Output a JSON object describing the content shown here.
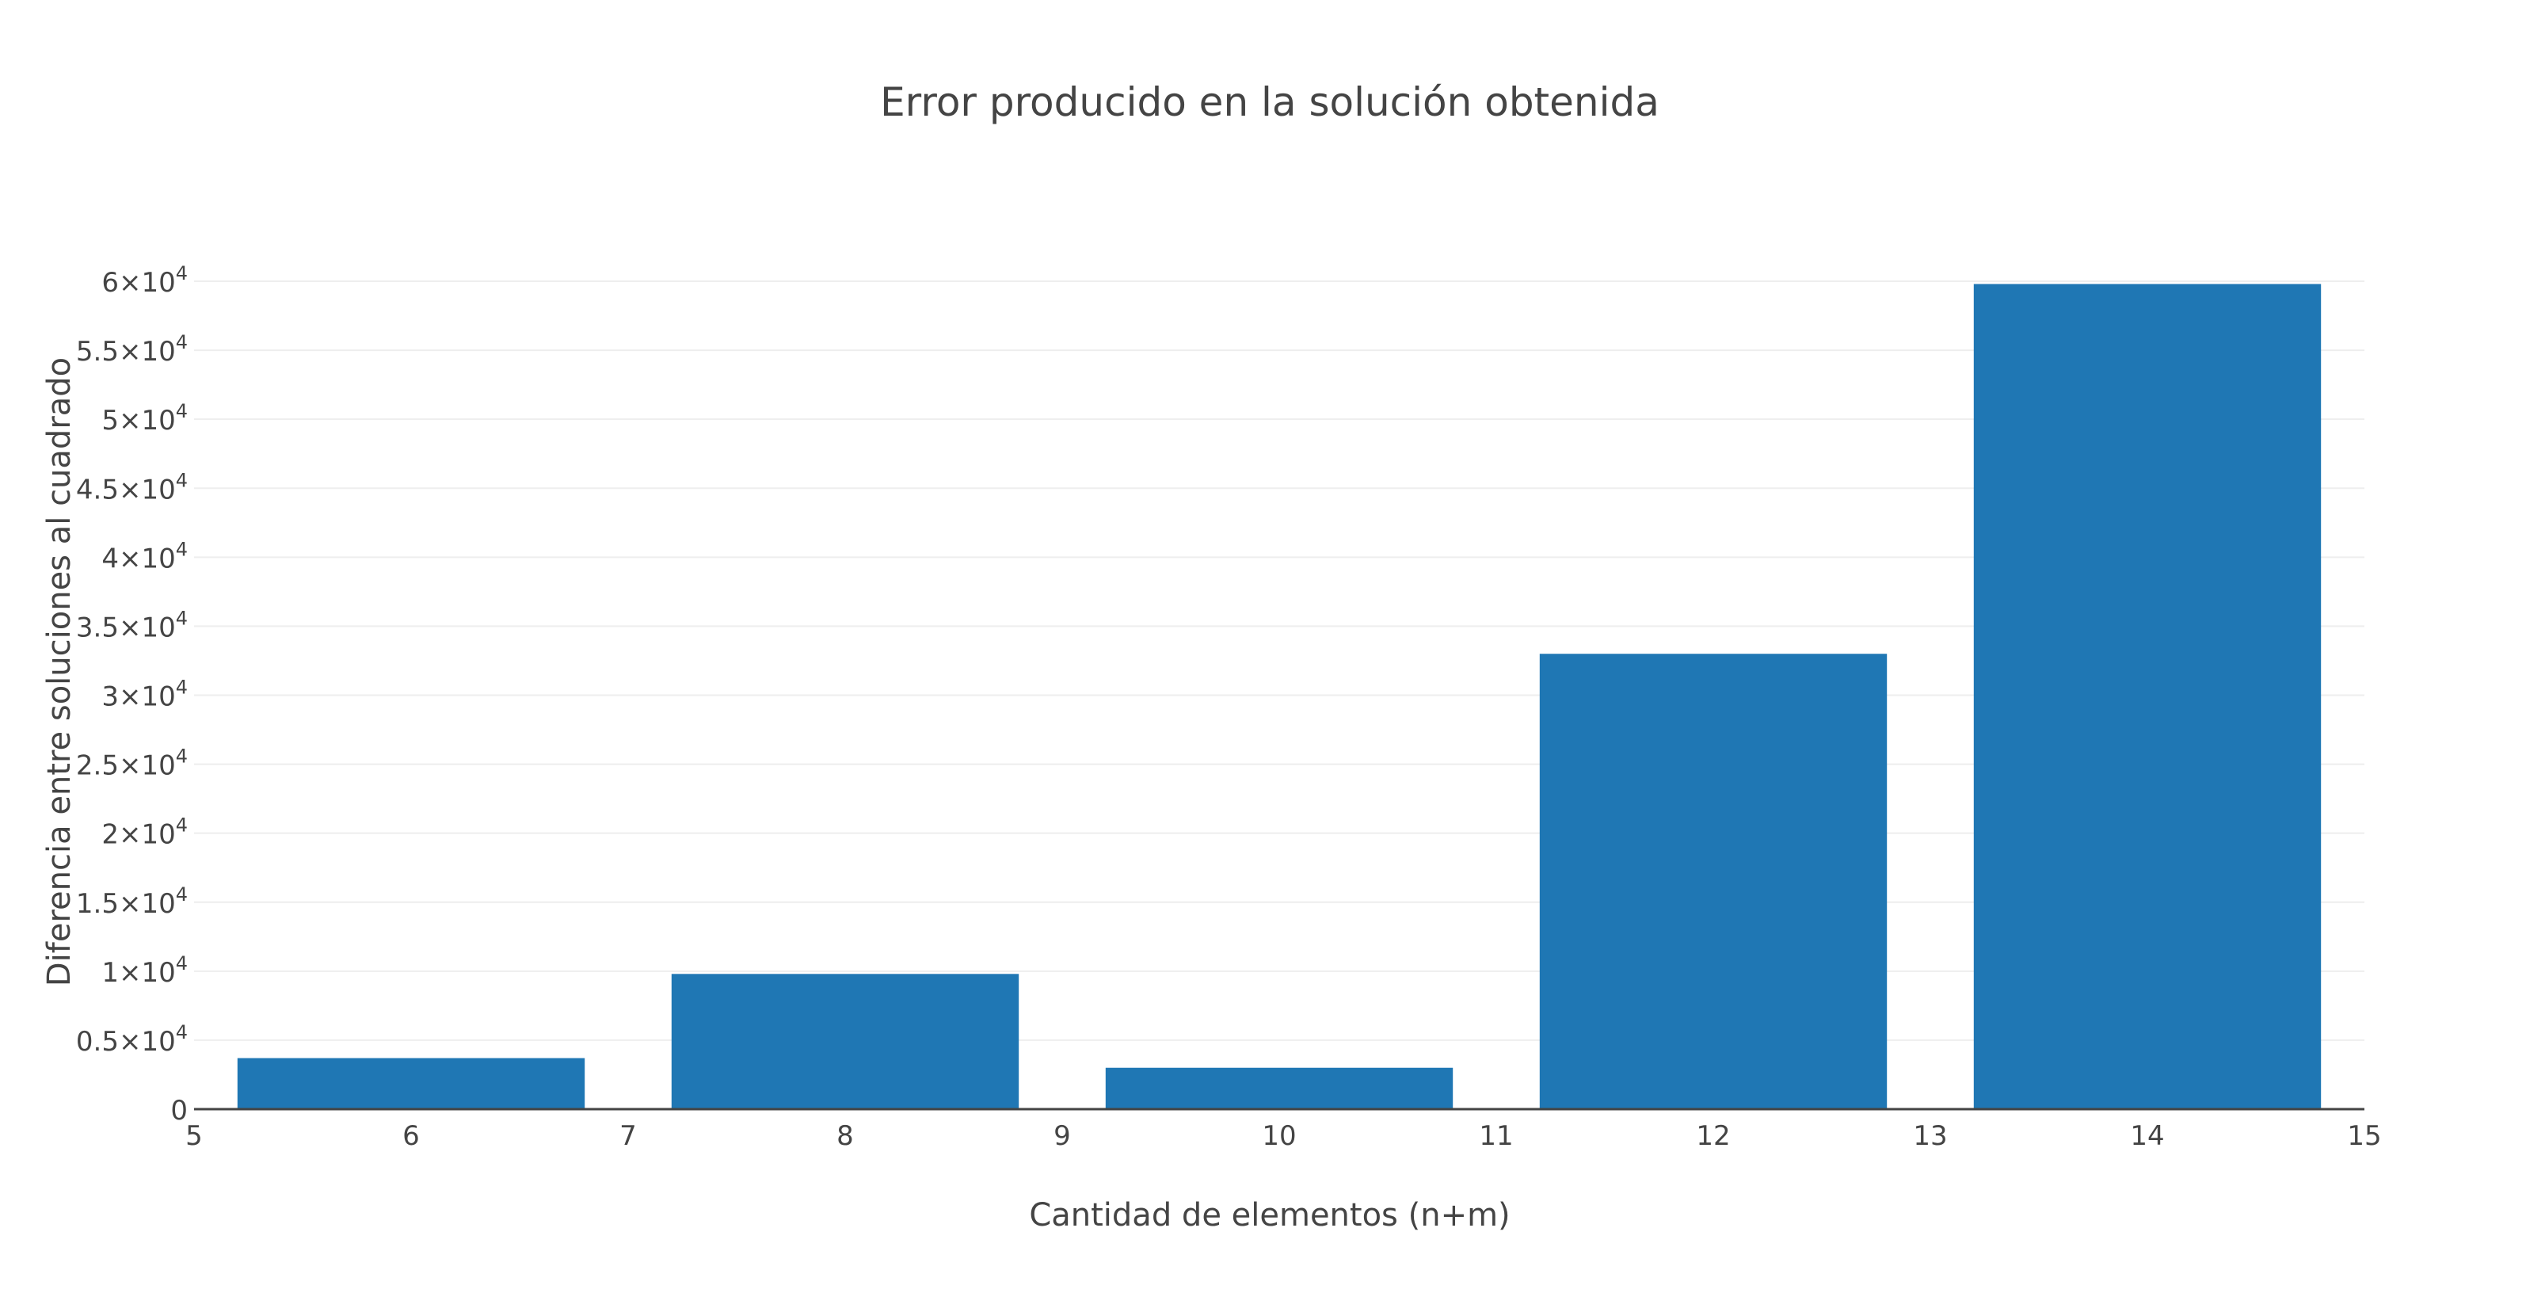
{
  "chart_data": {
    "type": "bar",
    "title": "Error  producido en la solución obtenida",
    "xlabel": "Cantidad de elementos (n+m)",
    "ylabel": "Diferencia entre soluciones al cuadrado",
    "x": [
      6,
      8,
      10,
      12,
      14
    ],
    "values": [
      3700,
      9800,
      3000,
      33000,
      59800
    ],
    "bar_width": 1.6,
    "xlim": [
      5,
      15
    ],
    "ylim": [
      0,
      60000
    ],
    "x_ticks": [
      "5",
      "6",
      "7",
      "8",
      "9",
      "10",
      "11",
      "12",
      "13",
      "14",
      "15"
    ],
    "y_ticks": [
      {
        "value": 0,
        "mantissa": "0",
        "exponent": ""
      },
      {
        "value": 5000,
        "mantissa": "0.5×10",
        "exponent": "4"
      },
      {
        "value": 10000,
        "mantissa": "1×10",
        "exponent": "4"
      },
      {
        "value": 15000,
        "mantissa": "1.5×10",
        "exponent": "4"
      },
      {
        "value": 20000,
        "mantissa": "2×10",
        "exponent": "4"
      },
      {
        "value": 25000,
        "mantissa": "2.5×10",
        "exponent": "4"
      },
      {
        "value": 30000,
        "mantissa": "3×10",
        "exponent": "4"
      },
      {
        "value": 35000,
        "mantissa": "3.5×10",
        "exponent": "4"
      },
      {
        "value": 40000,
        "mantissa": "4×10",
        "exponent": "4"
      },
      {
        "value": 45000,
        "mantissa": "4.5×10",
        "exponent": "4"
      },
      {
        "value": 50000,
        "mantissa": "5×10",
        "exponent": "4"
      },
      {
        "value": 55000,
        "mantissa": "5.5×10",
        "exponent": "4"
      },
      {
        "value": 60000,
        "mantissa": "6×10",
        "exponent": "4"
      }
    ],
    "grid": "horizontal",
    "legend": "none",
    "colors": {
      "bar": "#1f77b4",
      "grid": "#eeeeee",
      "axis": "#444444",
      "text": "#444444"
    }
  }
}
